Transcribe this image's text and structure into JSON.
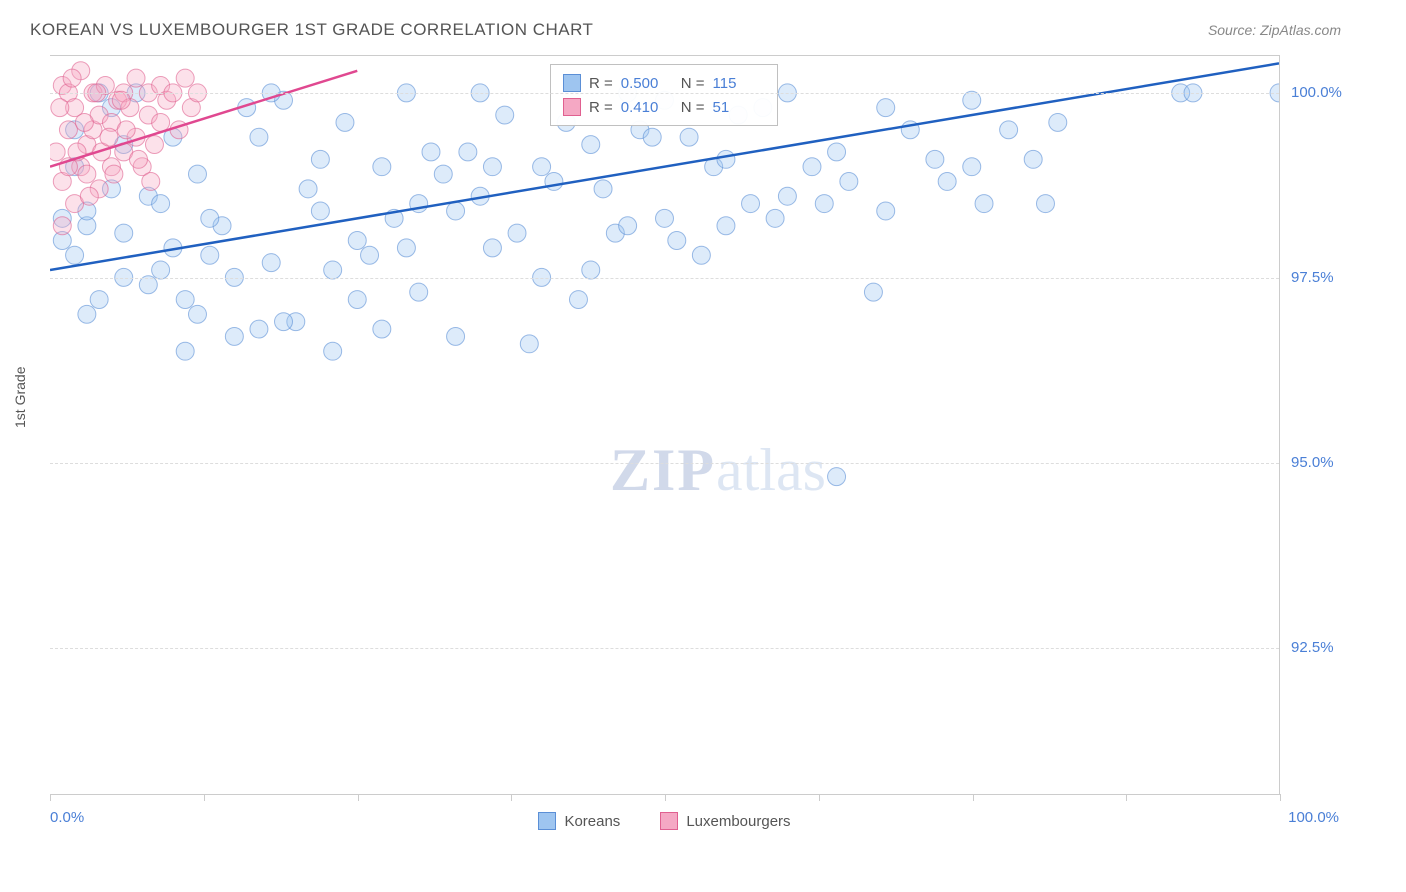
{
  "header": {
    "title": "KOREAN VS LUXEMBOURGER 1ST GRADE CORRELATION CHART",
    "source": "Source: ZipAtlas.com"
  },
  "chart": {
    "type": "scatter",
    "ylabel": "1st Grade",
    "xlim": [
      0,
      100
    ],
    "ylim": [
      90.5,
      100.5
    ],
    "yticks": [
      {
        "v": 100.0,
        "label": "100.0%"
      },
      {
        "v": 97.5,
        "label": "97.5%"
      },
      {
        "v": 95.0,
        "label": "95.0%"
      },
      {
        "v": 92.5,
        "label": "92.5%"
      }
    ],
    "xtick_positions": [
      0,
      12.5,
      25,
      37.5,
      50,
      62.5,
      75,
      87.5,
      100
    ],
    "xtick_labels": {
      "left": "0.0%",
      "right": "100.0%"
    },
    "watermark": {
      "bold": "ZIP",
      "rest": "atlas"
    },
    "series": [
      {
        "name": "Koreans",
        "color_fill": "#9ec5f0",
        "color_stroke": "#5b8fd6",
        "trend_color": "#2060c0",
        "R": "0.500",
        "N": "115",
        "trend": {
          "x1": 0,
          "y1": 97.6,
          "x2": 100,
          "y2": 100.4
        },
        "points": [
          [
            1,
            98.3
          ],
          [
            1,
            98.0
          ],
          [
            3,
            98.2
          ],
          [
            2,
            99.5
          ],
          [
            4,
            100.0
          ],
          [
            5,
            98.7
          ],
          [
            2,
            97.8
          ],
          [
            3,
            98.4
          ],
          [
            4,
            97.2
          ],
          [
            6,
            99.3
          ],
          [
            8,
            97.4
          ],
          [
            7,
            100.0
          ],
          [
            9,
            97.6
          ],
          [
            10,
            97.9
          ],
          [
            11,
            96.5
          ],
          [
            5,
            99.8
          ],
          [
            6,
            98.1
          ],
          [
            12,
            97.0
          ],
          [
            8,
            98.6
          ],
          [
            13,
            97.8
          ],
          [
            14,
            98.2
          ],
          [
            10,
            99.4
          ],
          [
            15,
            97.5
          ],
          [
            16,
            99.8
          ],
          [
            12,
            98.9
          ],
          [
            17,
            96.8
          ],
          [
            18,
            97.7
          ],
          [
            20,
            96.9
          ],
          [
            19,
            99.9
          ],
          [
            22,
            99.1
          ],
          [
            22,
            98.4
          ],
          [
            24,
            99.6
          ],
          [
            25,
            97.2
          ],
          [
            23,
            96.5
          ],
          [
            26,
            97.8
          ],
          [
            27,
            99.0
          ],
          [
            18,
            100.0
          ],
          [
            28,
            98.3
          ],
          [
            30,
            98.5
          ],
          [
            30,
            97.3
          ],
          [
            32,
            98.9
          ],
          [
            33,
            96.7
          ],
          [
            34,
            99.2
          ],
          [
            29,
            100.0
          ],
          [
            35,
            98.6
          ],
          [
            36,
            99.0
          ],
          [
            36,
            97.9
          ],
          [
            38,
            98.1
          ],
          [
            39,
            96.6
          ],
          [
            40,
            99.0
          ],
          [
            40,
            97.5
          ],
          [
            42,
            99.6
          ],
          [
            43,
            97.2
          ],
          [
            44,
            99.3
          ],
          [
            45,
            98.7
          ],
          [
            46,
            98.1
          ],
          [
            47,
            100.0
          ],
          [
            48,
            99.5
          ],
          [
            35,
            100.0
          ],
          [
            50,
            99.9
          ],
          [
            50,
            98.3
          ],
          [
            52,
            99.4
          ],
          [
            53,
            97.8
          ],
          [
            54,
            99.0
          ],
          [
            55,
            98.2
          ],
          [
            56,
            99.7
          ],
          [
            57,
            98.5
          ],
          [
            58,
            99.8
          ],
          [
            59,
            98.3
          ],
          [
            60,
            100.0
          ],
          [
            62,
            99.0
          ],
          [
            63,
            98.5
          ],
          [
            64,
            99.2
          ],
          [
            64,
            94.8
          ],
          [
            65,
            98.8
          ],
          [
            67,
            97.3
          ],
          [
            68,
            98.4
          ],
          [
            70,
            99.5
          ],
          [
            72,
            99.1
          ],
          [
            73,
            98.8
          ],
          [
            75,
            99.0
          ],
          [
            75,
            99.9
          ],
          [
            76,
            98.5
          ],
          [
            78,
            99.5
          ],
          [
            80,
            99.1
          ],
          [
            81,
            98.5
          ],
          [
            82,
            99.6
          ],
          [
            92,
            100.0
          ],
          [
            93,
            100.0
          ],
          [
            100,
            100.0
          ],
          [
            2,
            99.0
          ],
          [
            3,
            97.0
          ],
          [
            6,
            97.5
          ],
          [
            9,
            98.5
          ],
          [
            11,
            97.2
          ],
          [
            13,
            98.3
          ],
          [
            15,
            96.7
          ],
          [
            17,
            99.4
          ],
          [
            19,
            96.9
          ],
          [
            21,
            98.7
          ],
          [
            23,
            97.6
          ],
          [
            25,
            98.0
          ],
          [
            27,
            96.8
          ],
          [
            29,
            97.9
          ],
          [
            31,
            99.2
          ],
          [
            33,
            98.4
          ],
          [
            37,
            99.7
          ],
          [
            41,
            98.8
          ],
          [
            44,
            97.6
          ],
          [
            47,
            98.2
          ],
          [
            49,
            99.4
          ],
          [
            51,
            98.0
          ],
          [
            55,
            99.1
          ],
          [
            60,
            98.6
          ],
          [
            68,
            99.8
          ]
        ]
      },
      {
        "name": "Luxembourgers",
        "color_fill": "#f5a8c4",
        "color_stroke": "#e06090",
        "trend_color": "#e04890",
        "R": "0.410",
        "N": "51",
        "trend": {
          "x1": 0,
          "y1": 99.0,
          "x2": 25,
          "y2": 100.3
        },
        "points": [
          [
            0.5,
            99.2
          ],
          [
            1,
            100.1
          ],
          [
            1,
            98.8
          ],
          [
            1.5,
            99.5
          ],
          [
            1.5,
            100.0
          ],
          [
            2,
            98.5
          ],
          [
            2,
            99.8
          ],
          [
            2.5,
            99.0
          ],
          [
            2.5,
            100.3
          ],
          [
            3,
            99.3
          ],
          [
            3,
            98.9
          ],
          [
            3.5,
            100.0
          ],
          [
            3.5,
            99.5
          ],
          [
            4,
            99.7
          ],
          [
            4,
            98.7
          ],
          [
            4.5,
            100.1
          ],
          [
            5,
            99.0
          ],
          [
            5,
            99.6
          ],
          [
            5.5,
            99.9
          ],
          [
            6,
            100.0
          ],
          [
            6,
            99.2
          ],
          [
            6.5,
            99.8
          ],
          [
            7,
            99.4
          ],
          [
            7,
            100.2
          ],
          [
            7.5,
            99.0
          ],
          [
            8,
            99.7
          ],
          [
            8,
            100.0
          ],
          [
            8.5,
            99.3
          ],
          [
            9,
            99.6
          ],
          [
            9,
            100.1
          ],
          [
            9.5,
            99.9
          ],
          [
            10,
            100.0
          ],
          [
            10.5,
            99.5
          ],
          [
            11,
            100.2
          ],
          [
            11.5,
            99.8
          ],
          [
            12,
            100.0
          ],
          [
            1,
            98.2
          ],
          [
            1.5,
            99.0
          ],
          [
            0.8,
            99.8
          ],
          [
            2.2,
            99.2
          ],
          [
            3.2,
            98.6
          ],
          [
            4.2,
            99.2
          ],
          [
            5.2,
            98.9
          ],
          [
            6.2,
            99.5
          ],
          [
            7.2,
            99.1
          ],
          [
            8.2,
            98.8
          ],
          [
            1.8,
            100.2
          ],
          [
            2.8,
            99.6
          ],
          [
            3.8,
            100.0
          ],
          [
            4.8,
            99.4
          ],
          [
            5.8,
            99.9
          ]
        ]
      }
    ],
    "bottom_legend": [
      "Koreans",
      "Luxembourgers"
    ],
    "background_color": "#ffffff",
    "grid_color": "#dddddd",
    "axis_color": "#cccccc",
    "label_color": "#4a7fd6",
    "marker_radius": 9
  },
  "stats_labels": {
    "r": "R =",
    "n": "N ="
  }
}
